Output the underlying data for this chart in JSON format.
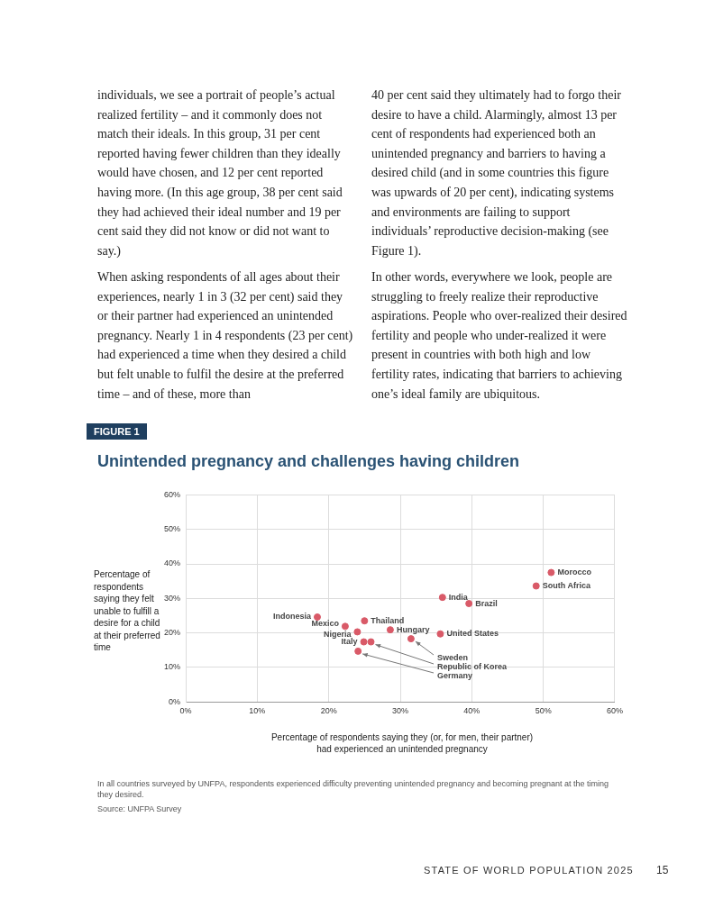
{
  "chart_data": {
    "type": "scatter",
    "title": "Unintended pregnancy and challenges having children",
    "xlabel": "Percentage of respondents saying they (or, for men, their partner) had experienced an unintended pregnancy",
    "ylabel": "Percentage of respondents saying they felt unable to fulfill a desire for a child at their preferred time",
    "x": [
      51.1,
      49.0,
      35.9,
      39.6,
      18.4,
      25.0,
      22.3,
      24.0,
      28.6,
      35.6,
      31.5,
      24.9,
      25.9,
      24.1
    ],
    "values": [
      37.5,
      33.6,
      30.3,
      28.5,
      24.6,
      23.5,
      21.9,
      20.3,
      20.9,
      19.7,
      18.3,
      17.4,
      17.4,
      14.7
    ],
    "color": "#d95a68",
    "marker": "circle",
    "grid": true,
    "xlim": [
      0,
      60
    ],
    "ylim": [
      0,
      60
    ],
    "xticks": [
      {
        "value": 0,
        "label": "0%"
      },
      {
        "value": 10,
        "label": "10%"
      },
      {
        "value": 20,
        "label": "20%"
      },
      {
        "value": 30,
        "label": "30%"
      },
      {
        "value": 40,
        "label": "40%"
      },
      {
        "value": 50,
        "label": "50%"
      },
      {
        "value": 60,
        "label": "60%"
      }
    ],
    "yticks": [
      {
        "value": 0,
        "label": "0%"
      },
      {
        "value": 10,
        "label": "10%"
      },
      {
        "value": 20,
        "label": "20%"
      },
      {
        "value": 30,
        "label": "30%"
      },
      {
        "value": 40,
        "label": "40%"
      },
      {
        "value": 50,
        "label": "50%"
      },
      {
        "value": 60,
        "label": "60%"
      }
    ],
    "annotations": [
      "individuals, we see a portrait of people’s actual realized fertility – and it commonly does not match their ideals. In this group, 31 per cent reported having fewer children than they ideally would have chosen, and 12 per cent reported having more. (In this age group, 38 per cent said they had achieved their ideal number and 19 per cent said they did not know or did not want to say.)",
      "When asking respondents of all ages about their experiences, nearly 1 in 3 (32 per cent) said they or their partner had experienced an unintended pregnancy. Nearly 1 in 4 respondents (23 per cent) had experienced a time when they desired a child but felt unable to fulfil the desire at the preferred time – and of these, more than",
      "40 per cent said they ultimately had to forgo their desire to have a child. Alarmingly, almost 13 per cent of respondents had experienced both an unintended pregnancy and barriers to having a desired child (and in some countries this figure was upwards of 20 per cent), indicating systems and environments are failing to support individuals’ reproductive decision-making (see Figure 1).",
      "In other words, everywhere we look, people are struggling to freely realize their reproductive aspirations. People who over-realized their desired fertility and people who under-realized it were present in countries with both high and low fertility rates, indicating that barriers to achieving one’s ideal family are ubiquitous.",
      "FIGURE 1",
      "In all countries surveyed by UNFPA, respondents experienced difficulty preventing unintended pregnancy and becoming pregnant at the timing they desired.",
      "Source: UNFPA Survey",
      "STATE OF WORLD POPULATION 2025",
      "15",
      {
        "text": "Morocco",
        "x": 51.1,
        "y": 37.5
      },
      {
        "text": "South Africa",
        "x": 49.0,
        "y": 33.6
      },
      {
        "text": "India",
        "x": 35.9,
        "y": 30.3
      },
      {
        "text": "Brazil",
        "x": 39.6,
        "y": 28.5
      },
      {
        "text": "Indonesia",
        "x": 18.4,
        "y": 24.6
      },
      {
        "text": "Thailand",
        "x": 25.0,
        "y": 23.5
      },
      {
        "text": "Mexico",
        "x": 22.3,
        "y": 21.9
      },
      {
        "text": "Nigeria",
        "x": 24.0,
        "y": 20.3
      },
      {
        "text": "Hungary",
        "x": 28.6,
        "y": 20.9
      },
      {
        "text": "United States",
        "x": 35.6,
        "y": 19.7
      },
      {
        "text": "Sweden",
        "x": 31.5,
        "y": 18.3
      },
      {
        "text": "Italy",
        "x": 24.9,
        "y": 17.4
      },
      {
        "text": "Republic of Korea",
        "x": 25.9,
        "y": 17.4
      },
      {
        "text": "Germany",
        "x": 24.1,
        "y": 14.7
      }
    ]
  }
}
